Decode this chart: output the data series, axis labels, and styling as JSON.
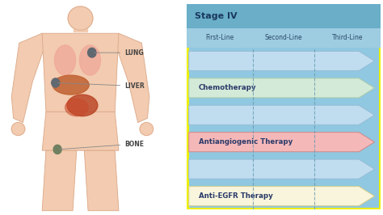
{
  "title": "Stage IV",
  "col_labels": [
    "First-Line",
    "Second-Line",
    "Third-Line"
  ],
  "arrows": [
    {
      "label": "Chemotherapy",
      "color": "#d4ead8",
      "edge_color": "#aaccaa"
    },
    {
      "label": "Antiangiogenic Therapy",
      "color": "#f5b8b8",
      "edge_color": "#d08888"
    },
    {
      "label": "Anti-EGFR Therapy",
      "color": "#f8f5dc",
      "edge_color": "#d4cc8a"
    }
  ],
  "bg_color": "#8fc8e0",
  "header_bg": "#6aaec8",
  "header_text": "Stage IV",
  "header_text_color": "#1a3a5c",
  "border_color": "#f0f000",
  "divider_color": "#6899b0",
  "col_label_color": "#2a4a6a",
  "arrow_text_color": "#2a3a6a",
  "blue_arrow_color": "#c0ddf0",
  "blue_arrow_edge": "#98bcd8",
  "divider1": 0.34,
  "divider2": 0.66,
  "body_color": "#f2cbb0",
  "body_edge": "#dba888",
  "lung_color": "#f0a898",
  "liver_color": "#c06030",
  "intestine_color": "#b84020",
  "dot_color": "#606870",
  "bone_dot_color": "#708060",
  "label_color": "#444444"
}
